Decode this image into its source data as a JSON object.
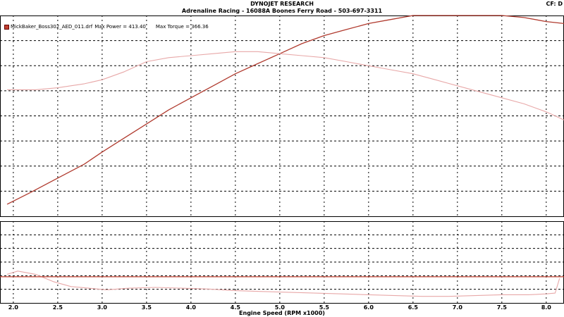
{
  "header": {
    "title": "DYNOJET RESEARCH",
    "shop": "Adrenaline Racing - 16088A Boones Ferry Road - 503-697-3311",
    "cf": "CF: D"
  },
  "legend": {
    "run_name": "MickBaker_Boss302_AED_011.drf",
    "max_power_text": "Max Power = 413.40",
    "max_torque_text": "Max Torque = 366.36"
  },
  "colors": {
    "power_line": "#b03a2e",
    "torque_line": "#e8a8a8",
    "afr_line": "#e8a8a8",
    "ref_line": "#c04030",
    "grid": "#000000"
  },
  "chart_data": [
    {
      "type": "line",
      "panel": "top",
      "xlim": [
        1.85,
        8.2
      ],
      "ylim": [
        0,
        10
      ],
      "grid": true,
      "y_tick_labels": false,
      "series": [
        {
          "key": "power",
          "x": [
            1.93,
            2.2,
            2.5,
            2.8,
            3.0,
            3.25,
            3.5,
            3.75,
            4.0,
            4.25,
            4.5,
            4.75,
            5.0,
            5.25,
            5.5,
            5.75,
            6.0,
            6.25,
            6.5,
            6.75,
            7.0,
            7.25,
            7.5,
            7.75,
            8.0,
            8.2
          ],
          "y": [
            0.6,
            1.2,
            1.9,
            2.6,
            3.2,
            3.9,
            4.6,
            5.3,
            5.9,
            6.5,
            7.1,
            7.6,
            8.1,
            8.6,
            9.0,
            9.3,
            9.6,
            9.8,
            10.0,
            10.0,
            10.0,
            10.0,
            10.0,
            9.9,
            9.7,
            9.6
          ]
        },
        {
          "key": "torque",
          "x": [
            1.93,
            2.25,
            2.5,
            2.8,
            3.0,
            3.25,
            3.5,
            3.75,
            4.0,
            4.25,
            4.5,
            4.75,
            5.0,
            5.25,
            5.5,
            5.75,
            6.0,
            6.25,
            6.5,
            6.75,
            7.0,
            7.25,
            7.5,
            7.75,
            8.0,
            8.2
          ],
          "y": [
            6.3,
            6.3,
            6.4,
            6.6,
            6.8,
            7.2,
            7.7,
            7.9,
            8.0,
            8.1,
            8.2,
            8.2,
            8.1,
            8.0,
            7.9,
            7.7,
            7.5,
            7.3,
            7.1,
            6.8,
            6.5,
            6.2,
            5.9,
            5.6,
            5.2,
            4.8
          ]
        }
      ]
    },
    {
      "type": "line",
      "panel": "bottom",
      "xlim": [
        1.85,
        8.2
      ],
      "ylim": [
        0,
        10
      ],
      "grid": true,
      "y_tick_labels": false,
      "xlabel": "Engine Speed (RPM x1000)",
      "x_ticks": [
        2.0,
        2.5,
        3.0,
        3.5,
        4.0,
        4.5,
        5.0,
        5.5,
        6.0,
        6.5,
        7.0,
        7.5,
        8.0
      ],
      "x_tick_labels": [
        "2.0",
        "2.5",
        "3.0",
        "3.5",
        "4.0",
        "4.5",
        "5.0",
        "5.5",
        "6.0",
        "6.5",
        "7.0",
        "7.5",
        "8.0"
      ],
      "series": [
        {
          "key": "afr",
          "x": [
            1.93,
            2.05,
            2.25,
            2.45,
            2.65,
            2.85,
            3.05,
            3.3,
            3.6,
            3.9,
            4.2,
            4.5,
            4.8,
            5.1,
            5.4,
            5.7,
            6.0,
            6.3,
            6.6,
            6.9,
            7.2,
            7.5,
            7.8,
            8.0,
            8.1,
            8.15
          ],
          "y": [
            3.5,
            3.9,
            3.5,
            2.6,
            2.0,
            1.8,
            1.6,
            1.8,
            1.9,
            1.8,
            1.7,
            1.5,
            1.4,
            1.3,
            1.2,
            1.1,
            1.0,
            0.9,
            0.8,
            0.8,
            0.9,
            1.0,
            1.0,
            1.1,
            1.2,
            3.0
          ]
        },
        {
          "key": "reference",
          "x": [
            1.85,
            8.2
          ],
          "y": [
            3.2,
            3.2
          ]
        }
      ]
    }
  ]
}
